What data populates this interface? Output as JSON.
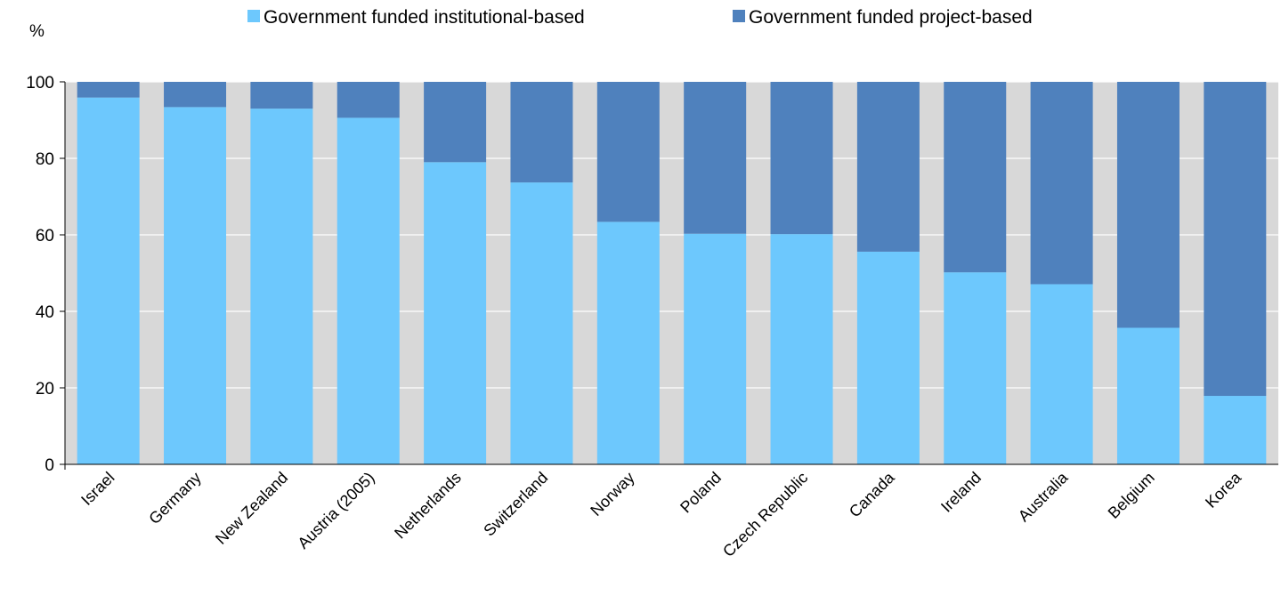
{
  "chart_data": {
    "type": "bar",
    "stacked": true,
    "unit_label": "%",
    "categories": [
      "Israel",
      "Germany",
      "New Zealand",
      "Austria (2005)",
      "Netherlands",
      "Switzerland",
      "Norway",
      "Poland",
      "Czech Republic",
      "Canada",
      "Ireland",
      "Australia",
      "Belgium",
      "Korea"
    ],
    "series": [
      {
        "name": "Government funded institutional-based",
        "color": "#6dc8fd",
        "values": [
          95.9,
          93.4,
          93.0,
          90.6,
          79.0,
          73.7,
          63.4,
          60.3,
          60.2,
          55.6,
          50.2,
          47.1,
          35.7,
          17.9
        ]
      },
      {
        "name": "Government funded project-based",
        "color": "#4f81bd",
        "values": [
          4.1,
          6.6,
          7.0,
          9.4,
          21.0,
          26.3,
          36.6,
          39.7,
          39.8,
          44.4,
          49.8,
          52.9,
          64.3,
          82.1
        ]
      }
    ],
    "ylim": [
      0,
      100
    ],
    "yticks": [
      0,
      20,
      40,
      60,
      80,
      100
    ],
    "grid": true,
    "legend_position": "top"
  }
}
